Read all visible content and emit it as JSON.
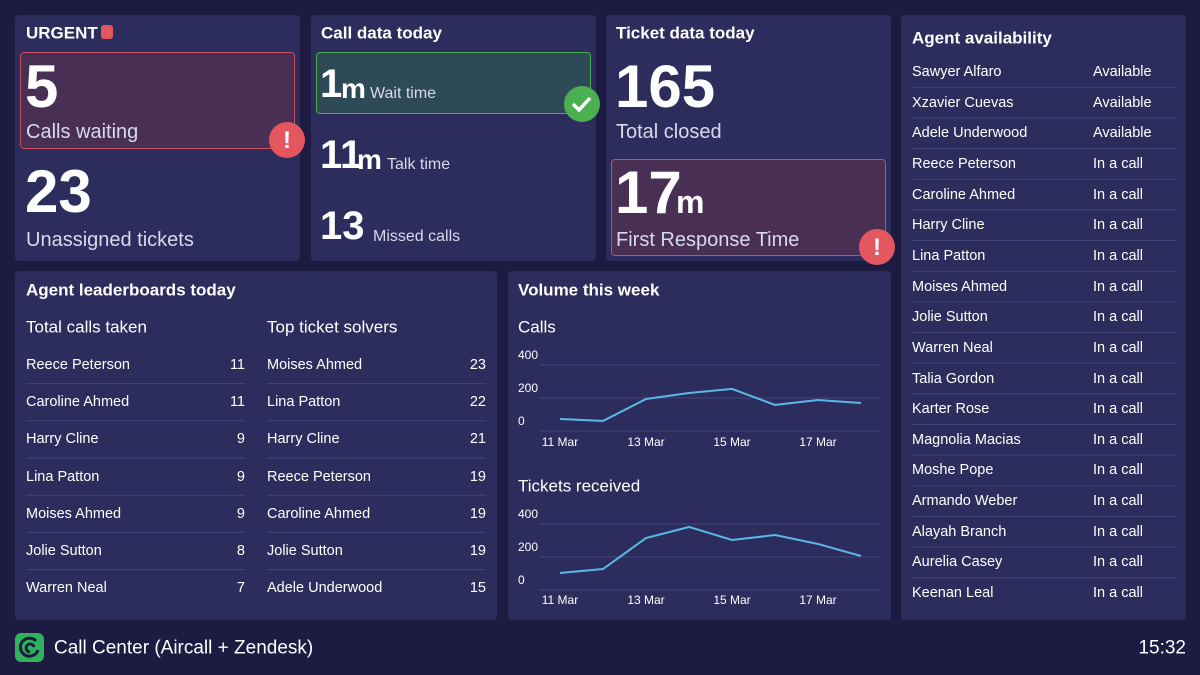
{
  "urgent": {
    "title": "URGENT",
    "calls_waiting": {
      "value": 5,
      "label": "Calls waiting"
    },
    "unassigned": {
      "value": 23,
      "label": "Unassigned tickets"
    }
  },
  "calls": {
    "title": "Call data today",
    "wait": {
      "value": 1,
      "unit": "m",
      "label": "Wait time"
    },
    "talk": {
      "value": 11,
      "unit": "m",
      "label": "Talk time"
    },
    "missed": {
      "value": 13,
      "label": "Missed calls"
    }
  },
  "tickets": {
    "title": "Ticket data today",
    "closed": {
      "value": 165,
      "label": "Total closed"
    },
    "frt": {
      "value": 17,
      "unit": "m",
      "label": "First Response Time"
    }
  },
  "leaderboards": {
    "title": "Agent leaderboards today",
    "calls": {
      "title": "Total calls taken",
      "rows": [
        [
          "Reece Peterson",
          11
        ],
        [
          "Caroline Ahmed",
          11
        ],
        [
          "Harry Cline",
          9
        ],
        [
          "Lina Patton",
          9
        ],
        [
          "Moises Ahmed",
          9
        ],
        [
          "Jolie Sutton",
          8
        ],
        [
          "Warren Neal",
          7
        ]
      ]
    },
    "solvers": {
      "title": "Top ticket solvers",
      "rows": [
        [
          "Moises Ahmed",
          23
        ],
        [
          "Lina Patton",
          22
        ],
        [
          "Harry Cline",
          21
        ],
        [
          "Reece Peterson",
          19
        ],
        [
          "Caroline Ahmed",
          19
        ],
        [
          "Jolie Sutton",
          19
        ],
        [
          "Adele Underwood",
          15
        ]
      ]
    }
  },
  "volume": {
    "title": "Volume this week"
  },
  "chart_data": [
    {
      "type": "line",
      "title": "Calls",
      "categories": [
        "11 Mar",
        null,
        "13 Mar",
        null,
        "15 Mar",
        null,
        "17 Mar",
        null
      ],
      "values": [
        73,
        61,
        194,
        230,
        255,
        158,
        188,
        170
      ],
      "color": "#5ab8e8",
      "ylim": [
        0,
        400
      ],
      "yticks": [
        0,
        200,
        400
      ],
      "grid": true
    },
    {
      "type": "line",
      "title": "Tickets received",
      "categories": [
        "11 Mar",
        null,
        "13 Mar",
        null,
        "15 Mar",
        null,
        "17 Mar",
        null
      ],
      "values": [
        103,
        127,
        315,
        382,
        303,
        333,
        279,
        206
      ],
      "color": "#5ab8e8",
      "ylim": [
        0,
        400
      ],
      "yticks": [
        0,
        200,
        400
      ],
      "grid": true
    }
  ],
  "availability": {
    "title": "Agent availability",
    "rows": [
      [
        "Sawyer Alfaro",
        "Available"
      ],
      [
        "Xzavier Cuevas",
        "Available"
      ],
      [
        "Adele Underwood",
        "Available"
      ],
      [
        "Reece Peterson",
        "In a call"
      ],
      [
        "Caroline Ahmed",
        "In a call"
      ],
      [
        "Harry Cline",
        "In a call"
      ],
      [
        "Lina Patton",
        "In a call"
      ],
      [
        "Moises Ahmed",
        "In a call"
      ],
      [
        "Jolie Sutton",
        "In a call"
      ],
      [
        "Warren Neal",
        "In a call"
      ],
      [
        "Talia Gordon",
        "In a call"
      ],
      [
        "Karter Rose",
        "In a call"
      ],
      [
        "Magnolia Macias",
        "In a call"
      ],
      [
        "Moshe Pope",
        "In a call"
      ],
      [
        "Armando Weber",
        "In a call"
      ],
      [
        "Alayah Branch",
        "In a call"
      ],
      [
        "Aurelia Casey",
        "In a call"
      ],
      [
        "Keenan Leal",
        "In a call"
      ]
    ]
  },
  "footer": {
    "title": "Call Center (Aircall + Zendesk)",
    "time": "15:32"
  }
}
